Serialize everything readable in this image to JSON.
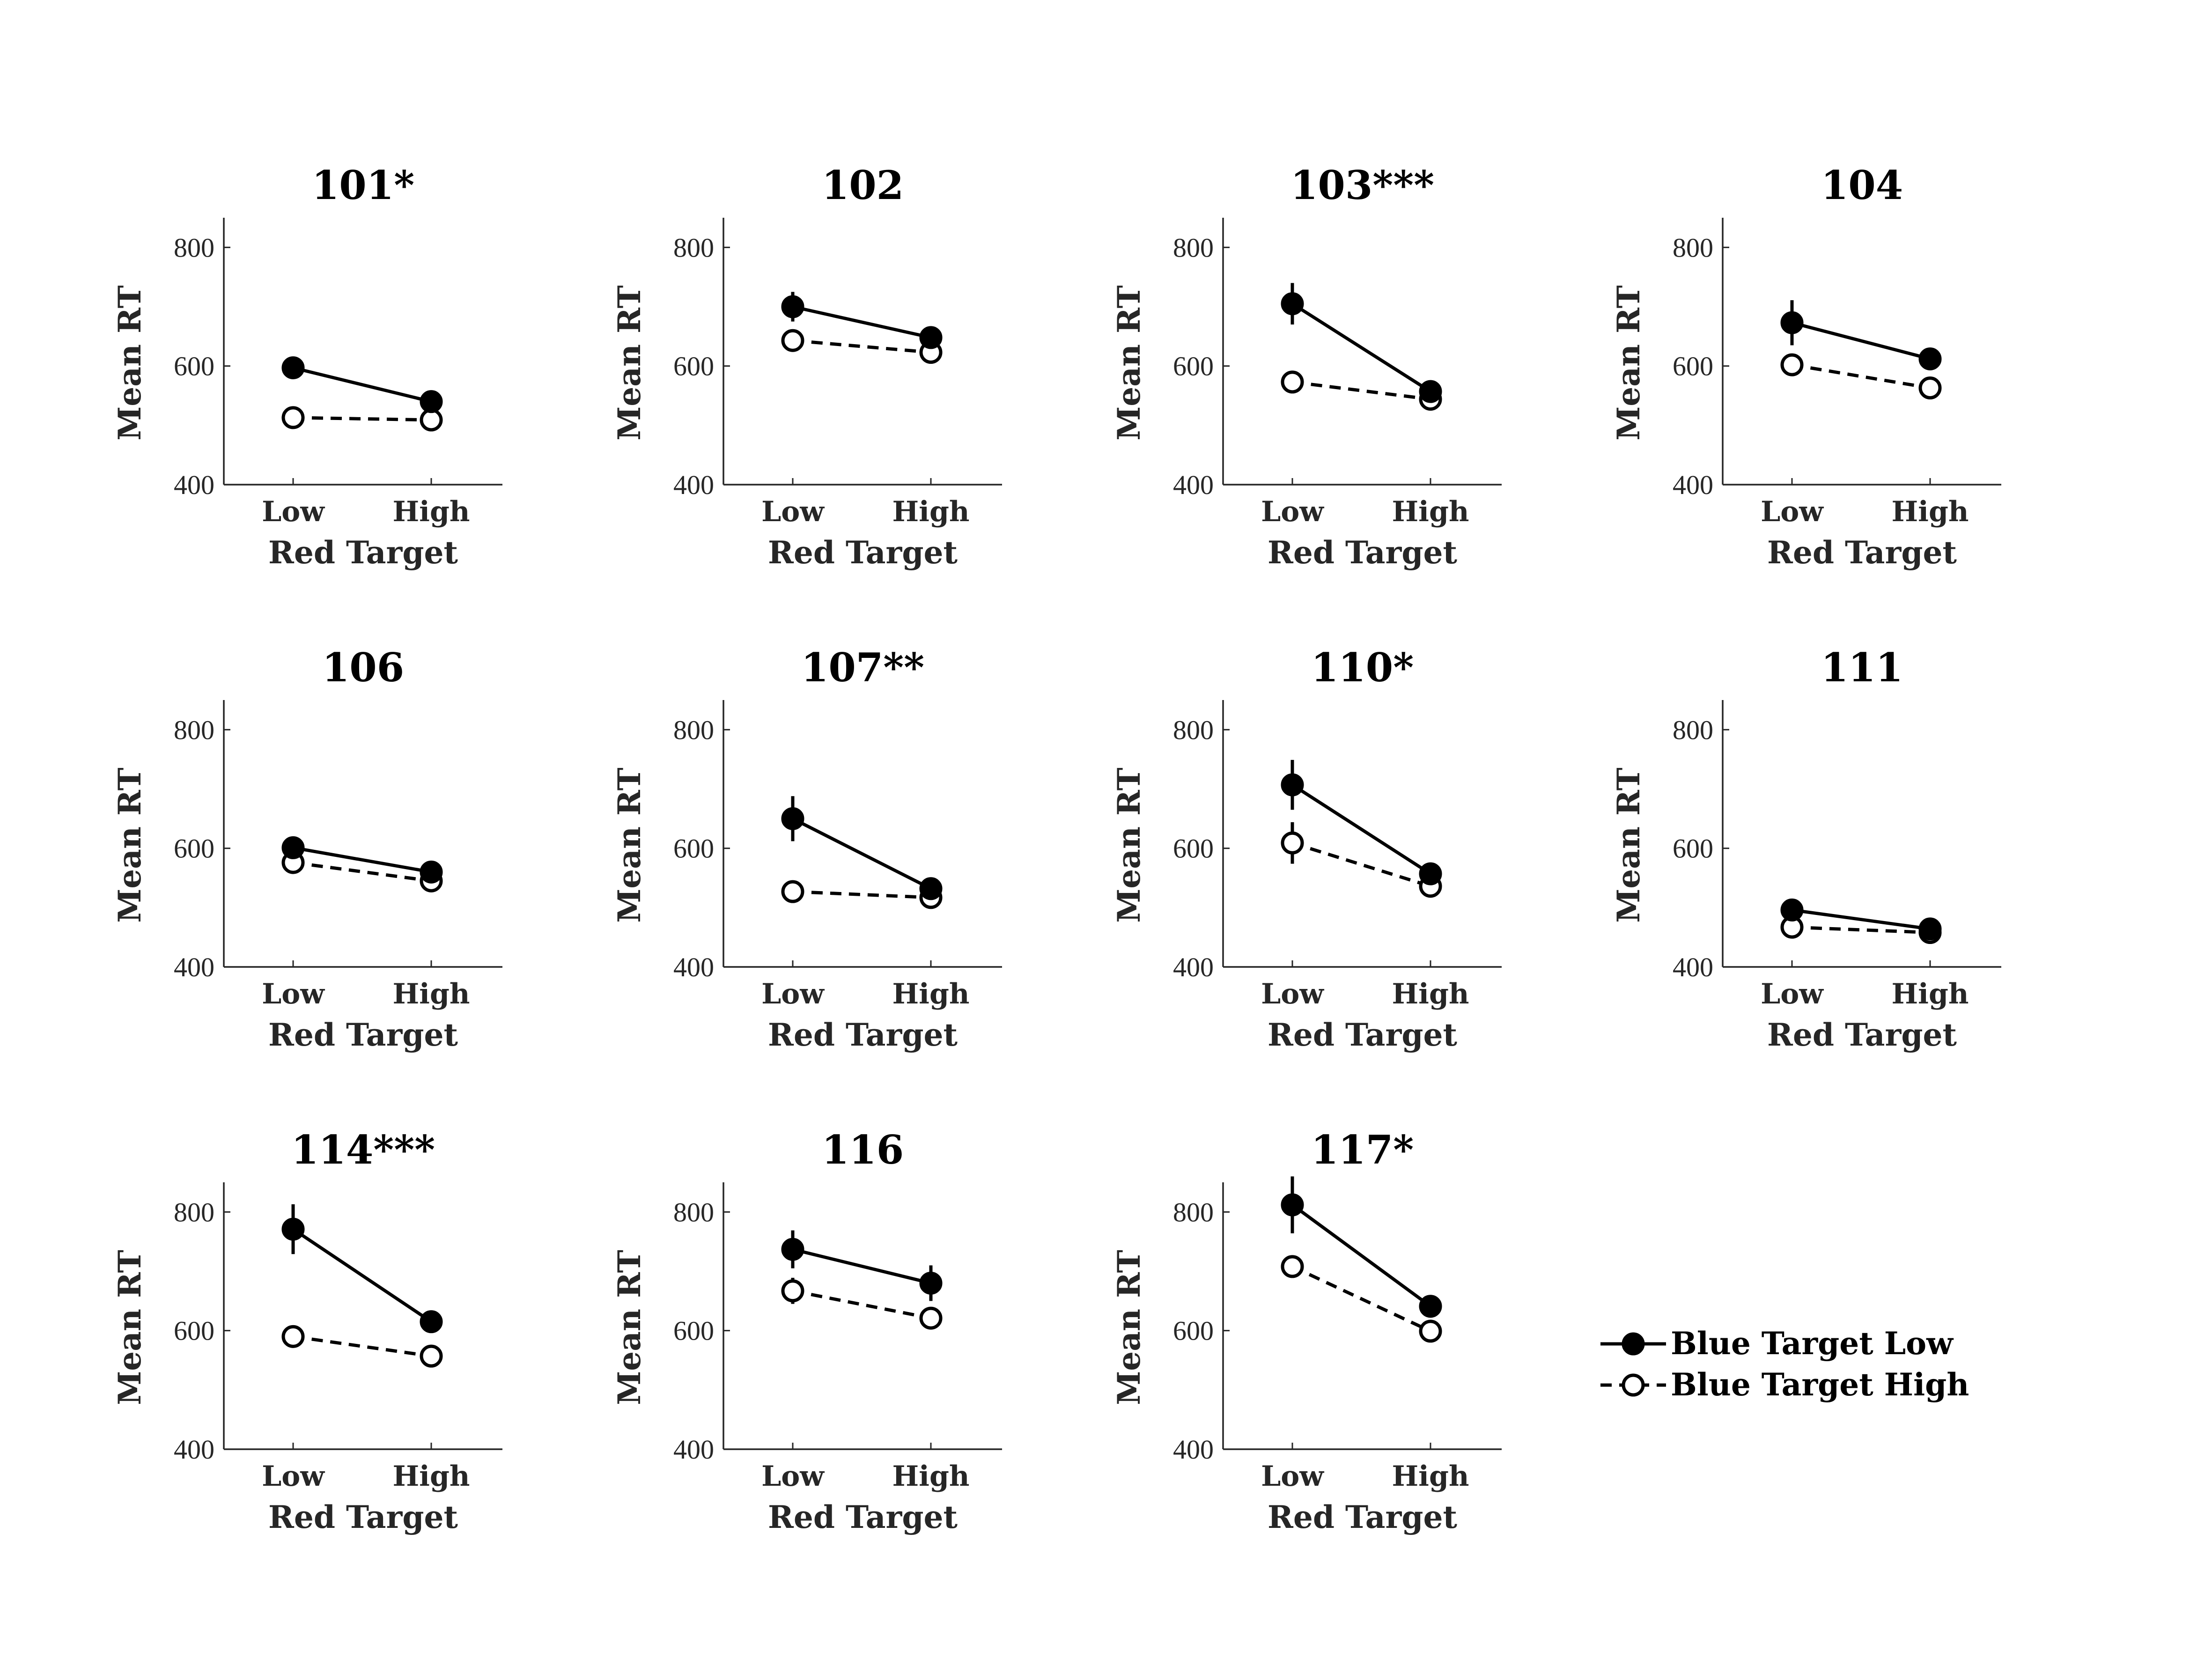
{
  "chart_data": {
    "type": "line",
    "layout_grid": "3x4",
    "ylabel": "Mean RT",
    "xlabel": "Red Target",
    "categories": [
      "Low",
      "High"
    ],
    "ylim": [
      400,
      850
    ],
    "yticks": [
      400,
      600,
      800
    ],
    "grid": false,
    "legend": {
      "placement": "bottom-right",
      "entries": [
        {
          "label": "Blue Target Low",
          "style": "solid",
          "marker": "filled-circle"
        },
        {
          "label": "Blue Target High",
          "style": "dashed",
          "marker": "open-circle"
        }
      ]
    },
    "colors": {
      "line": "#000000",
      "axis": "#262626",
      "open_marker_fill": "#ffffff"
    },
    "panels": [
      {
        "title": "101*",
        "series": [
          {
            "name": "Blue Target Low",
            "values": [
              597,
              540
            ],
            "errors": [
              18,
              10
            ]
          },
          {
            "name": "Blue Target High",
            "values": [
              513,
              509
            ],
            "errors": [
              8,
              8
            ]
          }
        ]
      },
      {
        "title": "102",
        "series": [
          {
            "name": "Blue Target Low",
            "values": [
              700,
              648
            ],
            "errors": [
              25,
              12
            ]
          },
          {
            "name": "Blue Target High",
            "values": [
              643,
              623
            ],
            "errors": [
              12,
              10
            ]
          }
        ]
      },
      {
        "title": "103***",
        "series": [
          {
            "name": "Blue Target Low",
            "values": [
              705,
              557
            ],
            "errors": [
              35,
              10
            ]
          },
          {
            "name": "Blue Target High",
            "values": [
              573,
              544
            ],
            "errors": [
              10,
              8
            ]
          }
        ]
      },
      {
        "title": "104",
        "series": [
          {
            "name": "Blue Target Low",
            "values": [
              673,
              612
            ],
            "errors": [
              38,
              18
            ]
          },
          {
            "name": "Blue Target High",
            "values": [
              602,
              563
            ],
            "errors": [
              10,
              15
            ]
          }
        ]
      },
      {
        "title": "106",
        "series": [
          {
            "name": "Blue Target Low",
            "values": [
              601,
              560
            ],
            "errors": [
              8,
              8
            ]
          },
          {
            "name": "Blue Target High",
            "values": [
              576,
              545
            ],
            "errors": [
              8,
              8
            ]
          }
        ]
      },
      {
        "title": "107**",
        "series": [
          {
            "name": "Blue Target Low",
            "values": [
              650,
              532
            ],
            "errors": [
              38,
              10
            ]
          },
          {
            "name": "Blue Target High",
            "values": [
              527,
              517
            ],
            "errors": [
              8,
              8
            ]
          }
        ]
      },
      {
        "title": "110*",
        "series": [
          {
            "name": "Blue Target Low",
            "values": [
              707,
              557
            ],
            "errors": [
              42,
              18
            ]
          },
          {
            "name": "Blue Target High",
            "values": [
              609,
              536
            ],
            "errors": [
              35,
              10
            ]
          }
        ]
      },
      {
        "title": "111",
        "series": [
          {
            "name": "Blue Target Low",
            "values": [
              496,
              464
            ],
            "errors": [
              8,
              8
            ]
          },
          {
            "name": "Blue Target High",
            "values": [
              467,
              458
            ],
            "errors": [
              8,
              8
            ]
          }
        ]
      },
      {
        "title": "114***",
        "series": [
          {
            "name": "Blue Target Low",
            "values": [
              771,
              615
            ],
            "errors": [
              42,
              10
            ]
          },
          {
            "name": "Blue Target High",
            "values": [
              590,
              557
            ],
            "errors": [
              15,
              10
            ]
          }
        ]
      },
      {
        "title": "116",
        "series": [
          {
            "name": "Blue Target Low",
            "values": [
              737,
              680
            ],
            "errors": [
              32,
              30
            ]
          },
          {
            "name": "Blue Target High",
            "values": [
              667,
              621
            ],
            "errors": [
              22,
              18
            ]
          }
        ]
      },
      {
        "title": "117*",
        "series": [
          {
            "name": "Blue Target Low",
            "values": [
              812,
              641
            ],
            "errors": [
              48,
              12
            ]
          },
          {
            "name": "Blue Target High",
            "values": [
              708,
              599
            ],
            "errors": [
              18,
              10
            ]
          }
        ]
      }
    ]
  }
}
